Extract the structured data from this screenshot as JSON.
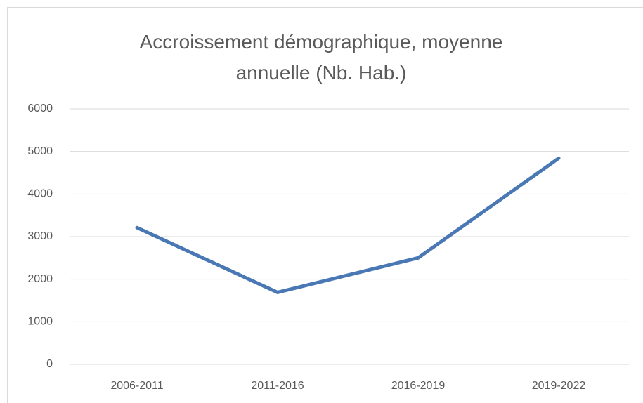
{
  "chart_data": {
    "type": "line",
    "title": "Accroissement démographique, moyenne annuelle (Nb. Hab.)",
    "categories": [
      "2006-2011",
      "2011-2016",
      "2016-2019",
      "2019-2022"
    ],
    "series": [
      {
        "name": "Accroissement",
        "color": "#4a78b5",
        "values": [
          3210,
          1690,
          2500,
          4840
        ]
      }
    ],
    "ylim": [
      0,
      6000
    ],
    "yticks": [
      0,
      1000,
      2000,
      3000,
      4000,
      5000,
      6000
    ],
    "grid": true
  }
}
